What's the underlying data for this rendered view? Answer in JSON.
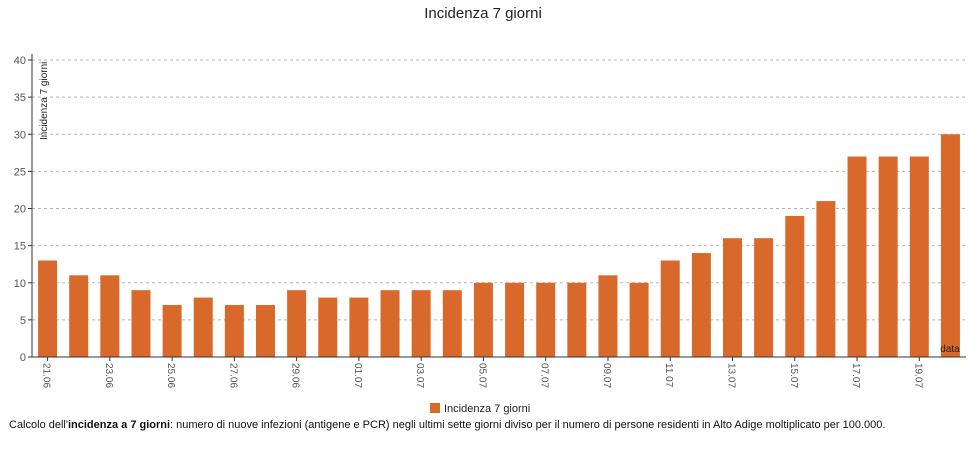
{
  "chart_data": {
    "type": "bar",
    "title": "Incidenza 7 giorni",
    "xlabel": "data",
    "ylabel": "Incidenza 7 giorni",
    "ylim": [
      0,
      40
    ],
    "yticks": [
      0,
      5,
      10,
      15,
      20,
      25,
      30,
      35,
      40
    ],
    "grid": true,
    "legend": "bottom-center",
    "color": "#d9692b",
    "categories": [
      "21.06",
      "22.06",
      "23.06",
      "24.06",
      "25.06",
      "26.06",
      "27.06",
      "28.06",
      "29.06",
      "30.06",
      "01.07",
      "02.07",
      "03.07",
      "04.07",
      "05.07",
      "06.07",
      "07.07",
      "08.07",
      "09.07",
      "10.07",
      "11.07",
      "12.07",
      "13.07",
      "14.07",
      "15.07",
      "16.07",
      "17.07",
      "18.07",
      "19.07",
      "20.07"
    ],
    "visible_tick_labels": [
      "21.06",
      "23.06",
      "25.06",
      "27.06",
      "29.06",
      "01.07",
      "03.07",
      "05.07",
      "07.07",
      "09.07",
      "11.07",
      "13.07",
      "15.07",
      "17.07",
      "19.07"
    ],
    "series": [
      {
        "name": "Incidenza 7 giorni",
        "values": [
          13,
          11,
          11,
          9,
          7,
          8,
          7,
          7,
          9,
          8,
          8,
          9,
          9,
          9,
          10,
          10,
          10,
          10,
          11,
          10,
          13,
          14,
          16,
          16,
          19,
          21,
          27,
          27,
          27,
          30
        ]
      }
    ]
  },
  "caption": {
    "prefix": "Calcolo dell'",
    "bold": "incidenza a 7 giorni",
    "suffix": ": numero di nuove infezioni (antigene e PCR) negli ultimi sette giorni diviso per il numero di persone residenti in Alto Adige moltiplicato per 100.000."
  }
}
